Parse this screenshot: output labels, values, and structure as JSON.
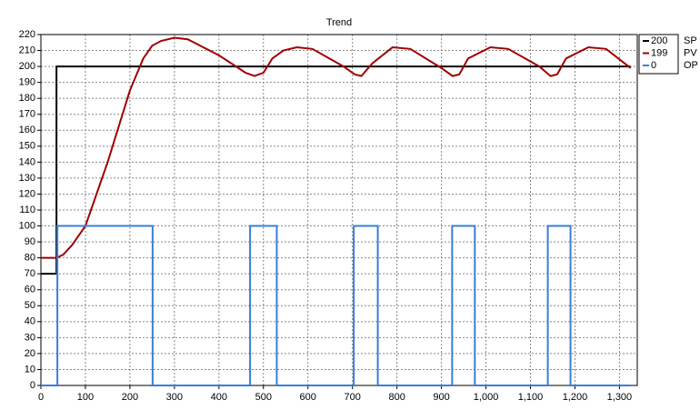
{
  "chart_data": {
    "type": "line",
    "title": "Trend",
    "xlim": [
      0,
      1340
    ],
    "xticks": [
      0,
      100,
      200,
      300,
      400,
      500,
      600,
      700,
      800,
      900,
      {
        "value": 1000,
        "label": "1,000"
      },
      {
        "value": 1100,
        "label": "1,100"
      },
      {
        "value": 1200,
        "label": "1,200"
      },
      {
        "value": 1300,
        "label": "1,300"
      }
    ],
    "ylim": [
      0,
      220
    ],
    "yticks": [
      0,
      10,
      20,
      30,
      40,
      50,
      60,
      70,
      80,
      90,
      100,
      110,
      120,
      130,
      140,
      150,
      160,
      170,
      180,
      190,
      200,
      210,
      220
    ],
    "grid": true,
    "legend": "right",
    "series": [
      {
        "name": "SP",
        "color": "#000000",
        "x": [
          0,
          35,
          35,
          1325
        ],
        "values": [
          70,
          70,
          200,
          200
        ]
      },
      {
        "name": "PV",
        "color": "#a00000",
        "x": [
          0,
          35,
          50,
          70,
          100,
          150,
          200,
          230,
          250,
          270,
          300,
          330,
          400,
          460,
          480,
          500,
          520,
          545,
          575,
          610,
          680,
          705,
          720,
          745,
          790,
          830,
          900,
          925,
          940,
          960,
          1010,
          1050,
          1120,
          1145,
          1160,
          1180,
          1230,
          1270,
          1325
        ],
        "values": [
          80,
          80,
          82,
          88,
          100,
          140,
          185,
          205,
          213,
          216,
          218,
          217,
          207,
          196,
          194,
          196,
          205,
          210,
          212,
          211,
          200,
          195,
          194,
          202,
          212,
          211,
          199,
          194,
          195,
          205,
          212,
          211,
          200,
          194,
          195,
          205,
          212,
          211,
          199
        ]
      },
      {
        "name": "OP",
        "color": "#3a7fd5",
        "x": [
          0,
          37,
          37,
          251,
          251,
          470,
          470,
          530,
          530,
          703,
          703,
          757,
          757,
          924,
          924,
          975,
          975,
          1139,
          1139,
          1190,
          1190,
          1325
        ],
        "values": [
          0,
          0,
          100,
          100,
          0,
          0,
          100,
          100,
          0,
          0,
          100,
          100,
          0,
          0,
          100,
          100,
          0,
          0,
          100,
          100,
          0,
          0
        ]
      }
    ]
  }
}
